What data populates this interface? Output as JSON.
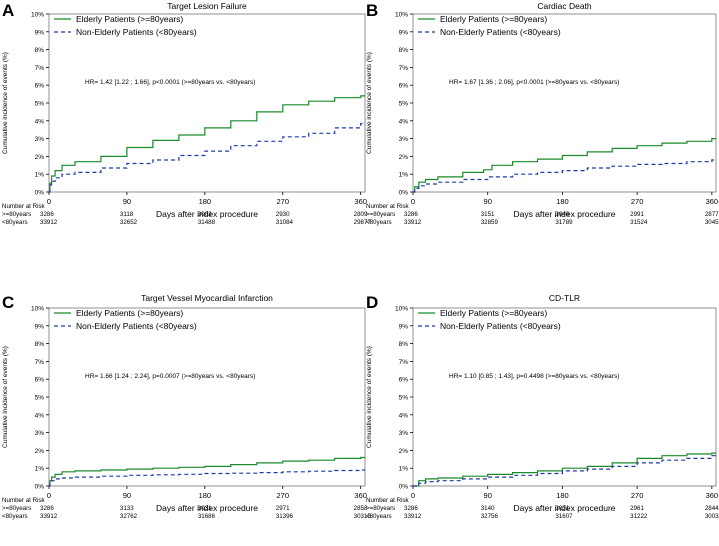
{
  "colors": {
    "elderly": "#1a8a2a",
    "non_elderly": "#1f3aa8",
    "axis": "#000000",
    "frame": "#777777"
  },
  "legend": {
    "elderly": "Elderly Patients (>=80years)",
    "non_elderly": "Non-Elderly Patients (<80years)"
  },
  "risk_table": {
    "header": "Number at Risk",
    "row_labels": [
      ">=80years",
      "<80years"
    ]
  },
  "chart_data": [
    {
      "panel": "A",
      "type": "line",
      "title": "Target Lesion Failure",
      "xlabel": "Days after index procedure",
      "ylabel": "Cumulative incidence of events (%)",
      "xlim": [
        0,
        365
      ],
      "ylim": [
        0,
        10
      ],
      "xticks": [
        0,
        90,
        180,
        270,
        360
      ],
      "yticks": [
        "0%",
        "1%",
        "2%",
        "3%",
        "4%",
        "5%",
        "6%",
        "7%",
        "8%",
        "9%",
        "10%"
      ],
      "annotation": "HR= 1.42 [1.22 ; 1.66], p<0.0001 (>=80years vs. <80years)",
      "series": [
        {
          "name": "Elderly Patients (>=80years)",
          "x": [
            0,
            1,
            3,
            7,
            15,
            30,
            60,
            90,
            120,
            150,
            180,
            210,
            240,
            270,
            300,
            330,
            360,
            365
          ],
          "values": [
            0,
            0.5,
            0.9,
            1.2,
            1.5,
            1.7,
            2.0,
            2.5,
            2.9,
            3.2,
            3.6,
            4.0,
            4.5,
            4.9,
            5.1,
            5.3,
            5.4,
            5.4
          ]
        },
        {
          "name": "Non-Elderly Patients (<80years)",
          "x": [
            0,
            1,
            3,
            7,
            15,
            30,
            60,
            90,
            120,
            150,
            180,
            210,
            240,
            270,
            300,
            330,
            360,
            365
          ],
          "values": [
            0,
            0.4,
            0.6,
            0.8,
            1.0,
            1.1,
            1.35,
            1.6,
            1.8,
            2.05,
            2.3,
            2.6,
            2.85,
            3.1,
            3.3,
            3.6,
            3.85,
            3.9
          ]
        }
      ],
      "at_risk": {
        "elderly": [
          3286,
          3118,
          3002,
          2930,
          2809
        ],
        "non_elderly": [
          33912,
          32652,
          31488,
          31084,
          29877
        ]
      }
    },
    {
      "panel": "B",
      "type": "line",
      "title": "Cardiac Death",
      "xlabel": "Days after index procedure",
      "ylabel": "Cumulative incidence of events (%)",
      "xlim": [
        0,
        365
      ],
      "ylim": [
        0,
        10
      ],
      "xticks": [
        0,
        90,
        180,
        270,
        360
      ],
      "yticks": [
        "0%",
        "1%",
        "2%",
        "3%",
        "4%",
        "5%",
        "6%",
        "7%",
        "8%",
        "9%",
        "10%"
      ],
      "annotation": "HR= 1.67 [1.36 ; 2.06], p<0.0001 (>=80years vs. <80years)",
      "series": [
        {
          "name": "Elderly Patients (>=80years)",
          "x": [
            0,
            2,
            7,
            15,
            30,
            60,
            85,
            95,
            120,
            150,
            180,
            210,
            240,
            270,
            300,
            330,
            360,
            365
          ],
          "values": [
            0,
            0.3,
            0.55,
            0.7,
            0.85,
            1.1,
            1.25,
            1.5,
            1.7,
            1.85,
            2.05,
            2.25,
            2.45,
            2.6,
            2.75,
            2.85,
            3.0,
            3.0
          ]
        },
        {
          "name": "Non-Elderly Patients (<80years)",
          "x": [
            0,
            2,
            7,
            15,
            30,
            60,
            90,
            120,
            150,
            180,
            210,
            240,
            270,
            300,
            330,
            360,
            365
          ],
          "values": [
            0,
            0.2,
            0.35,
            0.45,
            0.55,
            0.7,
            0.85,
            1.0,
            1.1,
            1.2,
            1.35,
            1.45,
            1.55,
            1.6,
            1.7,
            1.8,
            1.85
          ]
        }
      ],
      "at_risk": {
        "elderly": [
          3286,
          3151,
          3046,
          2991,
          2877
        ],
        "non_elderly": [
          33912,
          32859,
          31789,
          31524,
          30451
        ]
      }
    },
    {
      "panel": "C",
      "type": "line",
      "title": "Target Vessel Myocardial Infarction",
      "xlabel": "Days after index procedure",
      "ylabel": "Cumulative incidence of events (%)",
      "xlim": [
        0,
        365
      ],
      "ylim": [
        0,
        10
      ],
      "xticks": [
        0,
        90,
        180,
        270,
        360
      ],
      "yticks": [
        "0%",
        "1%",
        "2%",
        "3%",
        "4%",
        "5%",
        "6%",
        "7%",
        "8%",
        "9%",
        "10%"
      ],
      "annotation": "HR= 1.66 [1.24 ; 2.24], p=0.0007 (>=80years vs. <80years)",
      "series": [
        {
          "name": "Elderly Patients (>=80years)",
          "x": [
            0,
            1,
            3,
            7,
            15,
            30,
            60,
            90,
            120,
            150,
            180,
            210,
            240,
            270,
            300,
            330,
            360,
            365
          ],
          "values": [
            0,
            0.3,
            0.5,
            0.65,
            0.8,
            0.85,
            0.9,
            0.95,
            1.0,
            1.05,
            1.1,
            1.2,
            1.3,
            1.4,
            1.45,
            1.55,
            1.6,
            1.6
          ]
        },
        {
          "name": "Non-Elderly Patients (<80years)",
          "x": [
            0,
            1,
            3,
            7,
            15,
            30,
            60,
            90,
            120,
            150,
            180,
            210,
            240,
            270,
            300,
            330,
            360,
            365
          ],
          "values": [
            0,
            0.2,
            0.3,
            0.4,
            0.45,
            0.5,
            0.55,
            0.6,
            0.63,
            0.66,
            0.7,
            0.72,
            0.75,
            0.8,
            0.83,
            0.87,
            0.9,
            0.9
          ]
        }
      ],
      "at_risk": {
        "elderly": [
          3286,
          3133,
          3031,
          2971,
          2858
        ],
        "non_elderly": [
          33912,
          32762,
          31686,
          31396,
          30315
        ]
      }
    },
    {
      "panel": "D",
      "type": "line",
      "title": "CD-TLR",
      "xlabel": "Days after index procedure",
      "ylabel": "Cumulative incidence of events (%)",
      "xlim": [
        0,
        365
      ],
      "ylim": [
        0,
        10
      ],
      "xticks": [
        0,
        90,
        180,
        270,
        360
      ],
      "yticks": [
        "0%",
        "1%",
        "2%",
        "3%",
        "4%",
        "5%",
        "6%",
        "7%",
        "8%",
        "9%",
        "10%"
      ],
      "annotation": "HR= 1.10 [0.85 ; 1.43], p=0.4498 (>=80years vs. <80years)",
      "series": [
        {
          "name": "Elderly Patients (>=80years)",
          "x": [
            0,
            7,
            15,
            30,
            60,
            90,
            120,
            150,
            180,
            210,
            240,
            270,
            300,
            330,
            360,
            365
          ],
          "values": [
            0,
            0.3,
            0.4,
            0.45,
            0.55,
            0.65,
            0.75,
            0.85,
            1.0,
            1.1,
            1.3,
            1.55,
            1.7,
            1.8,
            1.85,
            1.85
          ]
        },
        {
          "name": "Non-Elderly Patients (<80years)",
          "x": [
            0,
            7,
            15,
            30,
            60,
            90,
            120,
            150,
            180,
            210,
            240,
            270,
            300,
            330,
            360,
            365
          ],
          "values": [
            0,
            0.15,
            0.25,
            0.3,
            0.4,
            0.5,
            0.6,
            0.7,
            0.85,
            0.95,
            1.1,
            1.3,
            1.45,
            1.55,
            1.7,
            1.7
          ]
        }
      ],
      "at_risk": {
        "elderly": [
          3286,
          3140,
          3031,
          2961,
          2844
        ],
        "non_elderly": [
          33912,
          32756,
          31607,
          31222,
          30038
        ]
      }
    }
  ]
}
